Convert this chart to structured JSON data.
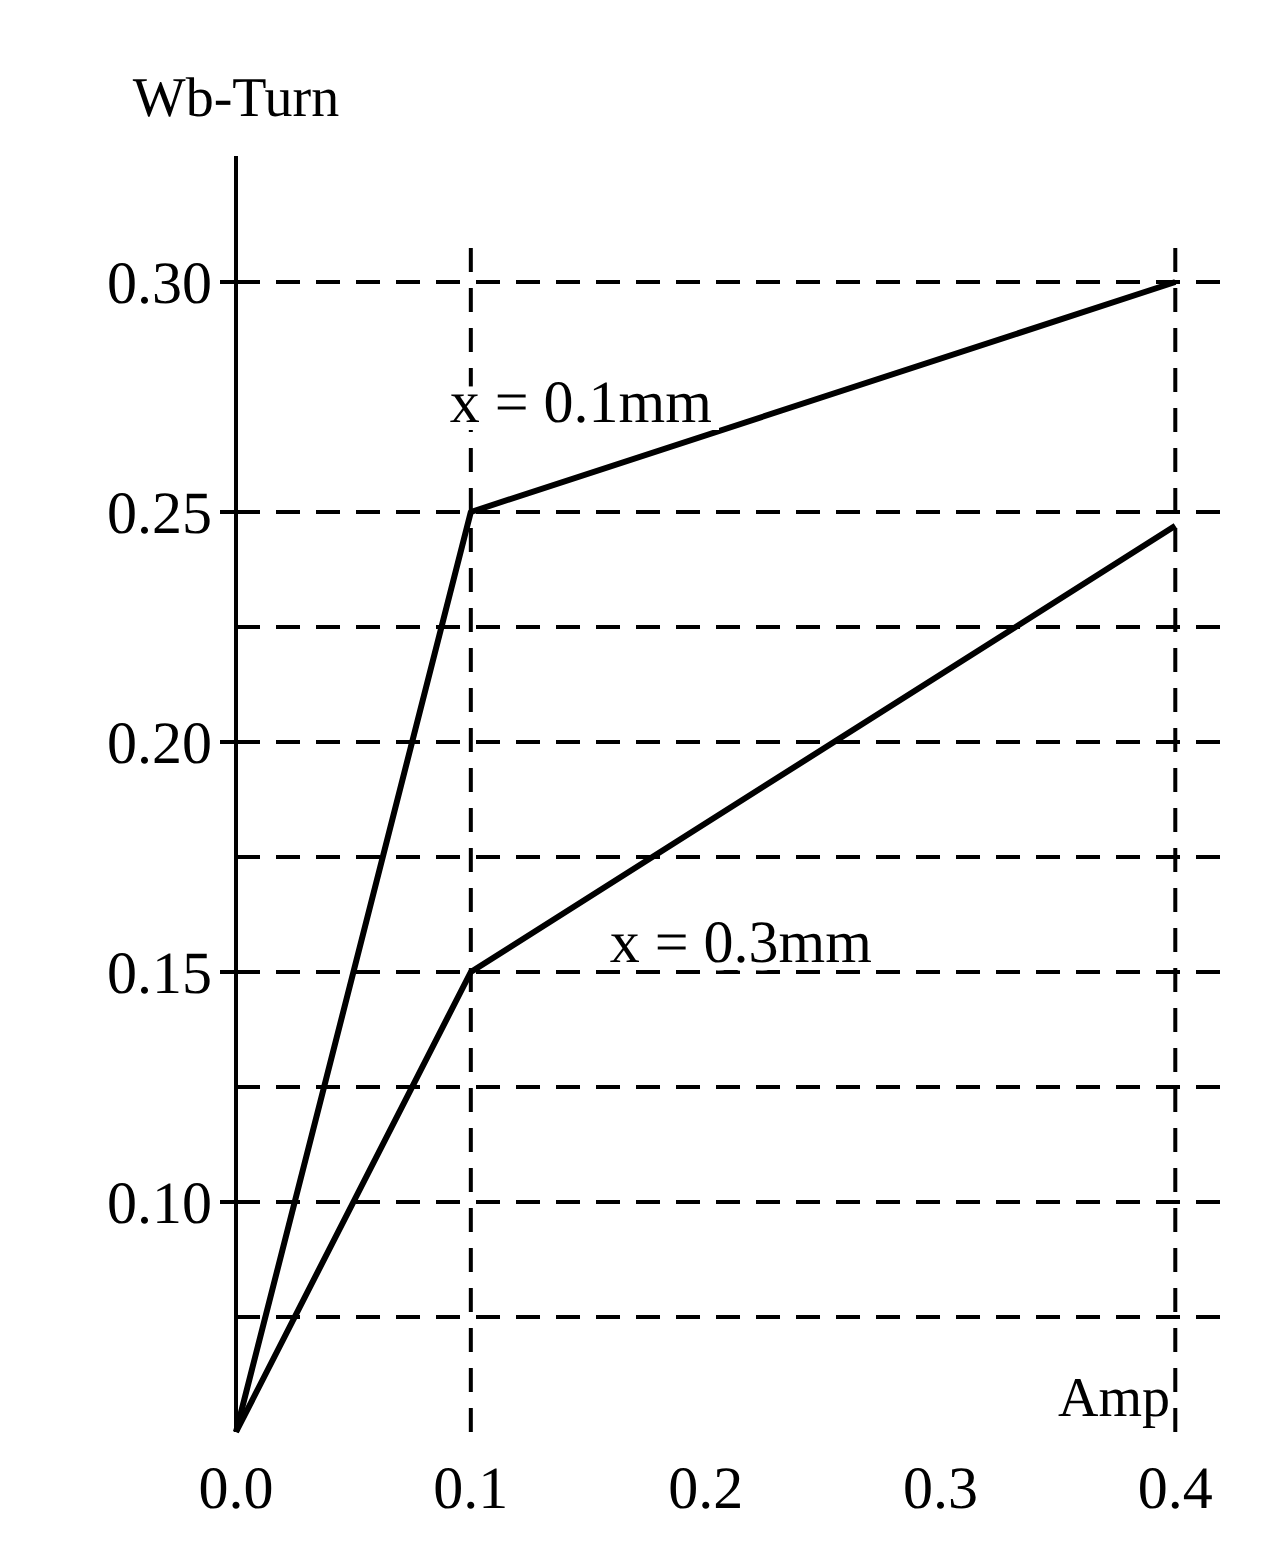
{
  "chart_data": {
    "type": "line",
    "xlabel": "Amp",
    "ylabel": "Wb-Turn",
    "xlim": [
      0,
      0.425
    ],
    "ylim": [
      0.05,
      0.31
    ],
    "xticks": [
      {
        "value": 0,
        "label": "0.0"
      },
      {
        "value": 0.1,
        "label": "0.1"
      },
      {
        "value": 0.2,
        "label": "0.2"
      },
      {
        "value": 0.3,
        "label": "0.3"
      },
      {
        "value": 0.4,
        "label": "0.4"
      }
    ],
    "yticks": [
      {
        "value": 0.1,
        "label": "0.10"
      },
      {
        "value": 0.15,
        "label": "0.15"
      },
      {
        "value": 0.2,
        "label": "0.20"
      },
      {
        "value": 0.25,
        "label": "0.25"
      },
      {
        "value": 0.3,
        "label": "0.30"
      }
    ],
    "x": [
      0,
      0.1,
      0.4
    ],
    "series": [
      {
        "name": "x = 0.1mm",
        "color": "#000000",
        "values": [
          0.05,
          0.25,
          0.3
        ]
      },
      {
        "name": "x = 0.3mm",
        "color": "#000000",
        "values": [
          0.05,
          0.15,
          0.247
        ]
      }
    ],
    "ref_lines": [
      {
        "axis": "y",
        "value": 0.075,
        "color": "#000000",
        "line_style": "dashed"
      },
      {
        "axis": "y",
        "value": 0.1,
        "color": "#000000",
        "line_style": "dashed"
      },
      {
        "axis": "y",
        "value": 0.125,
        "color": "#000000",
        "line_style": "dashed"
      },
      {
        "axis": "y",
        "value": 0.15,
        "color": "#000000",
        "line_style": "dashed"
      },
      {
        "axis": "y",
        "value": 0.175,
        "color": "#000000",
        "line_style": "dashed"
      },
      {
        "axis": "y",
        "value": 0.2,
        "color": "#000000",
        "line_style": "dashed"
      },
      {
        "axis": "y",
        "value": 0.225,
        "color": "#000000",
        "line_style": "dashed"
      },
      {
        "axis": "y",
        "value": 0.25,
        "color": "#000000",
        "line_style": "dashed"
      },
      {
        "axis": "y",
        "value": 0.3,
        "color": "#000000",
        "line_style": "dashed"
      },
      {
        "axis": "x",
        "value": 0.1,
        "color": "#000000",
        "line_style": "dashed"
      },
      {
        "axis": "x",
        "value": 0.4,
        "color": "#000000",
        "line_style": "dashed"
      }
    ],
    "grid": false,
    "marker": "none",
    "line_style": "solid"
  }
}
